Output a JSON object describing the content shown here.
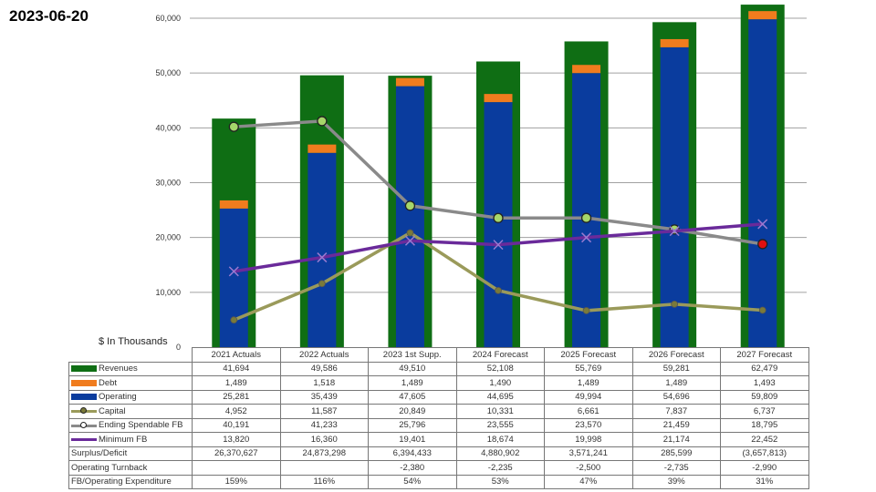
{
  "date_label": "2023-06-20",
  "chart_data": {
    "type": "bar",
    "ylabel": "$ In Thousands",
    "ylim": [
      0,
      60000
    ],
    "yticks": [
      "0",
      "10,000",
      "20,000",
      "30,000",
      "40,000",
      "50,000",
      "60,000"
    ],
    "yvalues": [
      0,
      10000,
      20000,
      30000,
      40000,
      50000,
      60000
    ],
    "grid": true,
    "categories": [
      "2021 Actuals",
      "2022 Actuals",
      "2023 1st Supp.",
      "2024 Forecast",
      "2025 Forecast",
      "2026 Forecast",
      "2027 Forecast"
    ],
    "series": [
      {
        "name": "Revenues",
        "kind": "bar",
        "color": "#0f6e14",
        "values": [
          41694,
          49586,
          49510,
          52108,
          55769,
          59281,
          62479
        ],
        "labels": [
          "41,694",
          "49,586",
          "49,510",
          "52,108",
          "55,769",
          "59,281",
          "62,479"
        ]
      },
      {
        "name": "Debt",
        "kind": "stacked-bar",
        "color": "#f07c1e",
        "values": [
          1489,
          1518,
          1489,
          1490,
          1489,
          1489,
          1493
        ],
        "labels": [
          "1,489",
          "1,518",
          "1,489",
          "1,490",
          "1,489",
          "1,489",
          "1,493"
        ]
      },
      {
        "name": "Operating",
        "kind": "stacked-bar",
        "color": "#0a3c9e",
        "values": [
          25281,
          35439,
          47605,
          44695,
          49994,
          54696,
          59809
        ],
        "labels": [
          "25,281",
          "35,439",
          "47,605",
          "44,695",
          "49,994",
          "54,696",
          "59,809"
        ]
      },
      {
        "name": "Capital",
        "kind": "line",
        "color": "#9a9a5a",
        "marker": "dot",
        "marker_color": "#7a7a3a",
        "values": [
          4952,
          11587,
          20849,
          10331,
          6661,
          7837,
          6737
        ],
        "labels": [
          "4,952",
          "11,587",
          "20,849",
          "10,331",
          "6,661",
          "7,837",
          "6,737"
        ]
      },
      {
        "name": "Ending Spendable FB",
        "kind": "line",
        "color": "#8a8a8a",
        "marker": "circle",
        "marker_color": "#a6d66a",
        "last_marker_color": "#e01010",
        "values": [
          40191,
          41233,
          25796,
          23555,
          23570,
          21459,
          18795
        ],
        "labels": [
          "40,191",
          "41,233",
          "25,796",
          "23,555",
          "23,570",
          "21,459",
          "18,795"
        ]
      },
      {
        "name": "Minimum FB",
        "kind": "line",
        "color": "#6a2a9a",
        "marker": "x",
        "marker_color": "#9a7ad0",
        "values": [
          13820,
          16360,
          19401,
          18674,
          19998,
          21174,
          22452
        ],
        "labels": [
          "13,820",
          "16,360",
          "19,401",
          "18,674",
          "19,998",
          "21,174",
          "22,452"
        ]
      }
    ],
    "extra_rows": [
      {
        "name": "Surplus/Deficit",
        "labels": [
          "26,370,627",
          "24,873,298",
          "6,394,433",
          "4,880,902",
          "3,571,241",
          "285,599",
          "(3,657,813)"
        ]
      },
      {
        "name": "Operating Turnback",
        "labels": [
          "",
          "",
          "-2,380",
          "-2,235",
          "-2,500",
          "-2,735",
          "-2,990"
        ]
      },
      {
        "name": "FB/Operating Expenditure",
        "labels": [
          "159%",
          "116%",
          "54%",
          "53%",
          "47%",
          "39%",
          "31%"
        ]
      }
    ]
  }
}
